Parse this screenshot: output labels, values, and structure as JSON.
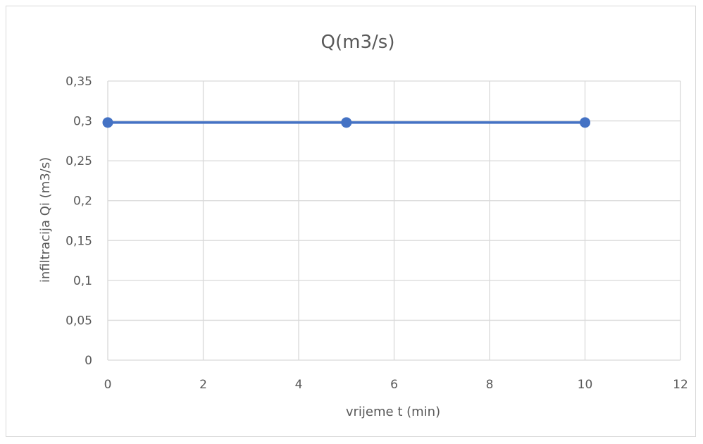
{
  "chart_data": {
    "type": "line",
    "title": "Q(m3/s)",
    "xlabel": "vrijeme t (min)",
    "ylabel": "infiltracija Qi (m3/s)",
    "xlim": [
      0,
      12
    ],
    "ylim": [
      0,
      0.35
    ],
    "x_ticks": [
      0,
      2,
      4,
      6,
      8,
      10,
      12
    ],
    "x_tick_labels": [
      "0",
      "2",
      "4",
      "6",
      "8",
      "10",
      "12"
    ],
    "y_ticks": [
      0,
      0.05,
      0.1,
      0.15,
      0.2,
      0.25,
      0.3,
      0.35
    ],
    "y_tick_labels": [
      "0",
      "0,05",
      "0,1",
      "0,15",
      "0,2",
      "0,25",
      "0,3",
      "0,35"
    ],
    "grid": true,
    "legend": "none",
    "series": [
      {
        "x": [
          0,
          5,
          10
        ],
        "y": [
          0.298,
          0.298,
          0.298
        ],
        "color": "#4472c4",
        "marker": "circle"
      }
    ]
  }
}
